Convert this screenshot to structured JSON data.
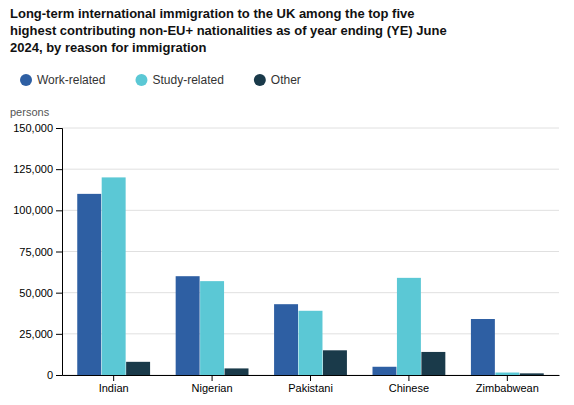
{
  "chart_data": {
    "type": "bar",
    "title": [
      "Long-term international immigration to the UK among the top five",
      "highest contributing non-EU+ nationalities as of year ending (YE) June",
      "2024, by reason for immigration"
    ],
    "ylabel": "persons",
    "categories": [
      "Indian",
      "Nigerian",
      "Pakistani",
      "Chinese",
      "Zimbabwean"
    ],
    "series": [
      {
        "name": "Work-related",
        "color": "#2e5fa3",
        "values": [
          110000,
          60000,
          43000,
          5000,
          34000
        ]
      },
      {
        "name": "Study-related",
        "color": "#5bc8d5",
        "values": [
          120000,
          57000,
          39000,
          59000,
          1500
        ]
      },
      {
        "name": "Other",
        "color": "#1a3a4a",
        "values": [
          8000,
          4000,
          15000,
          14000,
          1000
        ]
      }
    ],
    "ylim": [
      0,
      150000
    ],
    "yticks": [
      0,
      {
        "value": 25000,
        "label": "25,000"
      },
      {
        "value": 50000,
        "label": "50,000"
      },
      {
        "value": 75000,
        "label": "75,000"
      },
      {
        "value": 100000,
        "label": "100,000"
      },
      {
        "value": 125000,
        "label": "125,000"
      },
      {
        "value": 150000,
        "label": "150,000"
      }
    ],
    "grid": true,
    "legend": "top"
  }
}
